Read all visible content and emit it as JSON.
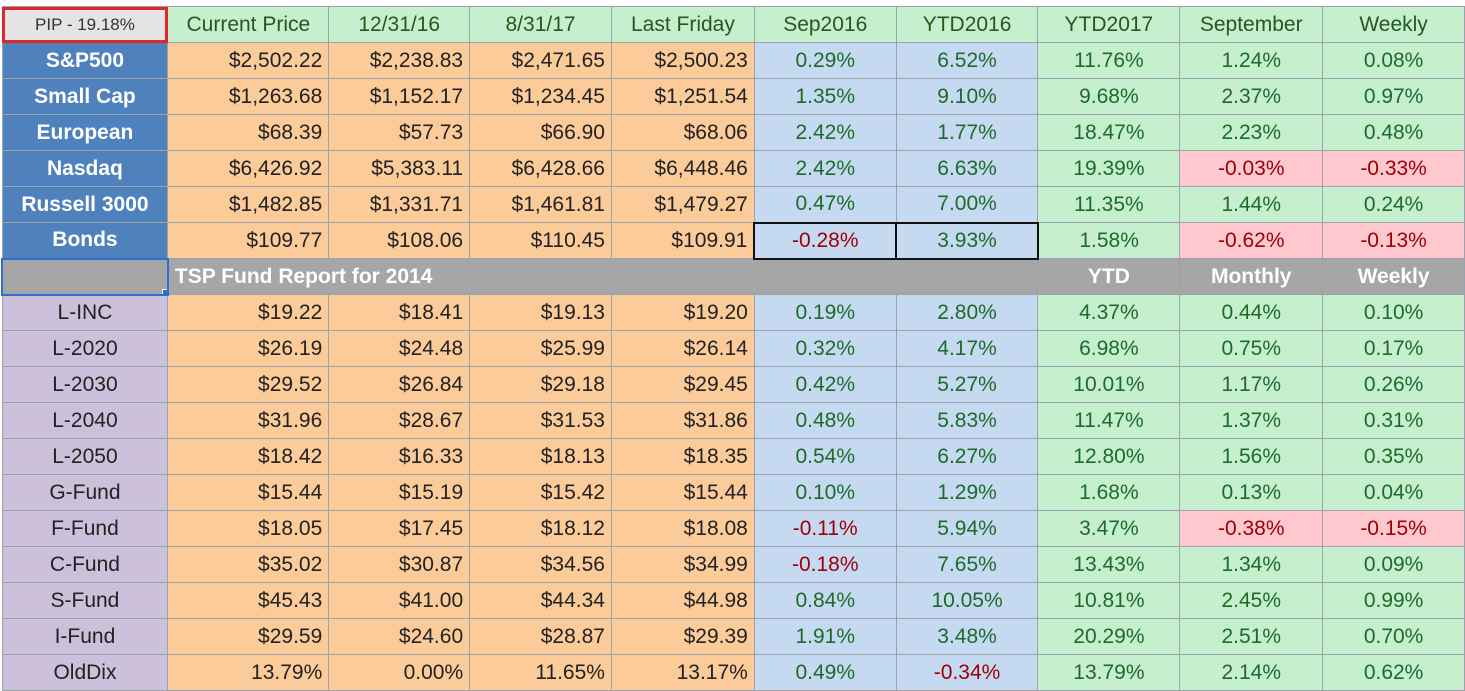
{
  "header": {
    "cells": [
      "PIP - 19.18%",
      "Current Price",
      "12/31/16",
      "8/31/17",
      "Last Friday",
      "Sep2016",
      "YTD2016",
      "YTD2017",
      "September",
      "Weekly"
    ]
  },
  "index_rows": [
    {
      "name": "S&P500",
      "cp": "$2,502.22",
      "d1": "$2,238.83",
      "d2": "$2,471.65",
      "lf": "$2,500.23",
      "sep": "0.29%",
      "ytd16": "6.52%",
      "ytd17": "11.76%",
      "month": "1.24%",
      "week": "0.08%"
    },
    {
      "name": "Small Cap",
      "cp": "$1,263.68",
      "d1": "$1,152.17",
      "d2": "$1,234.45",
      "lf": "$1,251.54",
      "sep": "1.35%",
      "ytd16": "9.10%",
      "ytd17": "9.68%",
      "month": "2.37%",
      "week": "0.97%"
    },
    {
      "name": "European",
      "cp": "$68.39",
      "d1": "$57.73",
      "d2": "$66.90",
      "lf": "$68.06",
      "sep": "2.42%",
      "ytd16": "1.77%",
      "ytd17": "18.47%",
      "month": "2.23%",
      "week": "0.48%"
    },
    {
      "name": "Nasdaq",
      "cp": "$6,426.92",
      "d1": "$5,383.11",
      "d2": "$6,428.66",
      "lf": "$6,448.46",
      "sep": "2.42%",
      "ytd16": "6.63%",
      "ytd17": "19.39%",
      "month": "-0.03%",
      "week": "-0.33%"
    },
    {
      "name": "Russell 3000",
      "cp": "$1,482.85",
      "d1": "$1,331.71",
      "d2": "$1,461.81",
      "lf": "$1,479.27",
      "sep": "0.47%",
      "ytd16": "7.00%",
      "ytd17": "11.35%",
      "month": "1.44%",
      "week": "0.24%"
    },
    {
      "name": "Bonds",
      "cp": "$109.77",
      "d1": "$108.06",
      "d2": "$110.45",
      "lf": "$109.91",
      "sep": "-0.28%",
      "ytd16": "3.93%",
      "ytd17": "1.58%",
      "month": "-0.62%",
      "week": "-0.13%"
    }
  ],
  "separator": {
    "title": "TSP Fund Report for 2014",
    "ytd": "YTD",
    "monthly": "Monthly",
    "weekly": "Weekly"
  },
  "fund_rows": [
    {
      "name": "L-INC",
      "cp": "$19.22",
      "d1": "$18.41",
      "d2": "$19.13",
      "lf": "$19.20",
      "sep": "0.19%",
      "ytd16": "2.80%",
      "ytd17": "4.37%",
      "month": "0.44%",
      "week": "0.10%"
    },
    {
      "name": "L-2020",
      "cp": "$26.19",
      "d1": "$24.48",
      "d2": "$25.99",
      "lf": "$26.14",
      "sep": "0.32%",
      "ytd16": "4.17%",
      "ytd17": "6.98%",
      "month": "0.75%",
      "week": "0.17%"
    },
    {
      "name": "L-2030",
      "cp": "$29.52",
      "d1": "$26.84",
      "d2": "$29.18",
      "lf": "$29.45",
      "sep": "0.42%",
      "ytd16": "5.27%",
      "ytd17": "10.01%",
      "month": "1.17%",
      "week": "0.26%"
    },
    {
      "name": "L-2040",
      "cp": "$31.96",
      "d1": "$28.67",
      "d2": "$31.53",
      "lf": "$31.86",
      "sep": "0.48%",
      "ytd16": "5.83%",
      "ytd17": "11.47%",
      "month": "1.37%",
      "week": "0.31%"
    },
    {
      "name": "L-2050",
      "cp": "$18.42",
      "d1": "$16.33",
      "d2": "$18.13",
      "lf": "$18.35",
      "sep": "0.54%",
      "ytd16": "6.27%",
      "ytd17": "12.80%",
      "month": "1.56%",
      "week": "0.35%"
    },
    {
      "name": "G-Fund",
      "cp": "$15.44",
      "d1": "$15.19",
      "d2": "$15.42",
      "lf": "$15.44",
      "sep": "0.10%",
      "ytd16": "1.29%",
      "ytd17": "1.68%",
      "month": "0.13%",
      "week": "0.04%"
    },
    {
      "name": "F-Fund",
      "cp": "$18.05",
      "d1": "$17.45",
      "d2": "$18.12",
      "lf": "$18.08",
      "sep": "-0.11%",
      "ytd16": "5.94%",
      "ytd17": "3.47%",
      "month": "-0.38%",
      "week": "-0.15%"
    },
    {
      "name": "C-Fund",
      "cp": "$35.02",
      "d1": "$30.87",
      "d2": "$34.56",
      "lf": "$34.99",
      "sep": "-0.18%",
      "ytd16": "7.65%",
      "ytd17": "13.43%",
      "month": "1.34%",
      "week": "0.09%"
    },
    {
      "name": "S-Fund",
      "cp": "$45.43",
      "d1": "$41.00",
      "d2": "$44.34",
      "lf": "$44.98",
      "sep": "0.84%",
      "ytd16": "10.05%",
      "ytd17": "10.81%",
      "month": "2.45%",
      "week": "0.99%"
    },
    {
      "name": "I-Fund",
      "cp": "$29.59",
      "d1": "$24.60",
      "d2": "$28.87",
      "lf": "$29.39",
      "sep": "1.91%",
      "ytd16": "3.48%",
      "ytd17": "20.29%",
      "month": "2.51%",
      "week": "0.70%"
    },
    {
      "name": "OldDix",
      "cp": "13.79%",
      "d1": "0.00%",
      "d2": "11.65%",
      "lf": "13.17%",
      "sep": "0.49%",
      "ytd16": "-0.34%",
      "ytd17": "13.79%",
      "month": "2.14%",
      "week": "0.62%"
    }
  ],
  "colors": {
    "index_header": "#4f81bd",
    "fund_header": "#ccc0da",
    "price": "#fbcb9a",
    "blue": "#c5d9f1",
    "green": "#c6efce",
    "negative_fill": "#ffc7ce",
    "negative_text": "#9c0006"
  }
}
